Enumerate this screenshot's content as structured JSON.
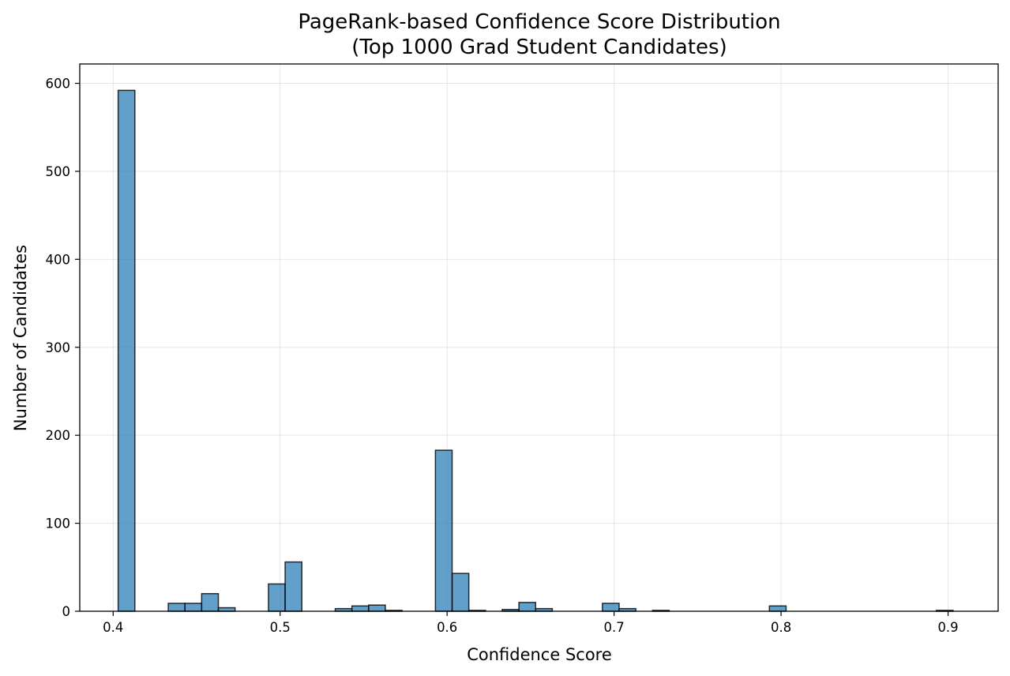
{
  "chart_data": {
    "type": "bar",
    "title_line1": "PageRank-based Confidence Score Distribution",
    "title_line2": "(Top 1000 Grad Student Candidates)",
    "xlabel": "Confidence Score",
    "ylabel": "Number of Candidates",
    "xlim": [
      0.38,
      0.93
    ],
    "ylim": [
      0,
      622
    ],
    "xticks": [
      0.4,
      0.5,
      0.6,
      0.7,
      0.8,
      0.9
    ],
    "xtick_labels": [
      "0.4",
      "0.5",
      "0.6",
      "0.7",
      "0.8",
      "0.9"
    ],
    "yticks": [
      0,
      100,
      200,
      300,
      400,
      500,
      600
    ],
    "ytick_labels": [
      "0",
      "100",
      "200",
      "300",
      "400",
      "500",
      "600"
    ],
    "grid": true,
    "bin_width": 0.01,
    "bins": [
      {
        "x0": 0.403,
        "count": 592
      },
      {
        "x0": 0.433,
        "count": 9
      },
      {
        "x0": 0.443,
        "count": 9
      },
      {
        "x0": 0.453,
        "count": 20
      },
      {
        "x0": 0.463,
        "count": 4
      },
      {
        "x0": 0.493,
        "count": 31
      },
      {
        "x0": 0.503,
        "count": 56
      },
      {
        "x0": 0.533,
        "count": 3
      },
      {
        "x0": 0.543,
        "count": 6
      },
      {
        "x0": 0.553,
        "count": 7
      },
      {
        "x0": 0.563,
        "count": 1
      },
      {
        "x0": 0.593,
        "count": 183
      },
      {
        "x0": 0.603,
        "count": 43
      },
      {
        "x0": 0.613,
        "count": 1
      },
      {
        "x0": 0.633,
        "count": 2
      },
      {
        "x0": 0.643,
        "count": 10
      },
      {
        "x0": 0.653,
        "count": 3
      },
      {
        "x0": 0.693,
        "count": 9
      },
      {
        "x0": 0.703,
        "count": 3
      },
      {
        "x0": 0.723,
        "count": 1
      },
      {
        "x0": 0.793,
        "count": 6
      },
      {
        "x0": 0.893,
        "count": 1
      }
    ],
    "colors": {
      "bar_fill": "#1f77b4",
      "bar_edge": "#000000"
    }
  }
}
